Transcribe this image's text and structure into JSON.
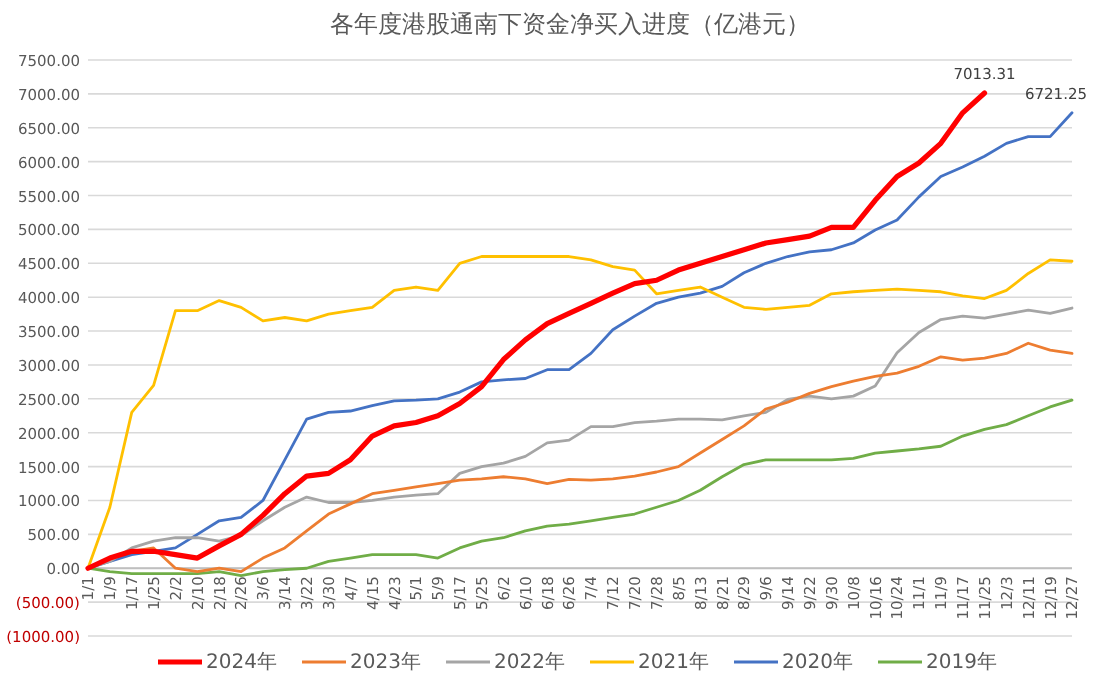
{
  "chart_data": {
    "type": "line",
    "title": "各年度港股通南下资金净买入进度（亿港元）",
    "categories": [
      "1/1",
      "1/9",
      "1/17",
      "1/25",
      "2/2",
      "2/10",
      "2/18",
      "2/26",
      "3/6",
      "3/14",
      "3/22",
      "3/30",
      "4/7",
      "4/15",
      "4/23",
      "5/1",
      "5/9",
      "5/17",
      "5/25",
      "6/2",
      "6/10",
      "6/18",
      "6/26",
      "7/4",
      "7/12",
      "7/20",
      "7/28",
      "8/5",
      "8/13",
      "8/21",
      "8/29",
      "9/6",
      "9/14",
      "9/22",
      "9/30",
      "10/8",
      "10/16",
      "10/24",
      "11/1",
      "11/9",
      "11/17",
      "11/25",
      "12/3",
      "12/11",
      "12/19",
      "12/27"
    ],
    "series": [
      {
        "name": "2024年",
        "color": "#ff0000",
        "values": [
          0,
          150,
          250,
          250,
          200,
          150,
          330,
          500,
          780,
          1100,
          1360,
          1400,
          1600,
          1950,
          2100,
          2150,
          2250,
          2430,
          2680,
          3080,
          3370,
          3610,
          3760,
          3910,
          4060,
          4200,
          4250,
          4400,
          4500,
          4600,
          4700,
          4800,
          4850,
          4900,
          5030,
          5030,
          5430,
          5780,
          5980,
          6270,
          6720,
          7013.31,
          null,
          null,
          null,
          null
        ]
      },
      {
        "name": "2023年",
        "color": "#ed7d31",
        "values": [
          0,
          150,
          250,
          300,
          0,
          -50,
          0,
          -50,
          150,
          300,
          550,
          800,
          950,
          1100,
          1150,
          1200,
          1250,
          1300,
          1320,
          1350,
          1320,
          1250,
          1310,
          1300,
          1320,
          1360,
          1420,
          1500,
          1700,
          1900,
          2100,
          2350,
          2450,
          2580,
          2680,
          2760,
          2830,
          2880,
          2980,
          3120,
          3070,
          3100,
          3170,
          3320,
          3220,
          3170
        ]
      },
      {
        "name": "2022年",
        "color": "#a5a5a5",
        "values": [
          0,
          100,
          300,
          400,
          450,
          450,
          400,
          480,
          700,
          900,
          1050,
          970,
          970,
          1000,
          1050,
          1080,
          1100,
          1400,
          1500,
          1550,
          1650,
          1850,
          1890,
          2090,
          2090,
          2150,
          2170,
          2200,
          2200,
          2190,
          2250,
          2300,
          2490,
          2540,
          2500,
          2540,
          2690,
          3180,
          3480,
          3670,
          3720,
          3690,
          3750,
          3810,
          3760,
          3840
        ]
      },
      {
        "name": "2021年",
        "color": "#ffc000",
        "values": [
          0,
          900,
          2300,
          2700,
          3800,
          3800,
          3950,
          3850,
          3650,
          3700,
          3650,
          3750,
          3800,
          3850,
          4100,
          4150,
          4100,
          4500,
          4600,
          4600,
          4600,
          4600,
          4600,
          4550,
          4450,
          4400,
          4050,
          4100,
          4150,
          4000,
          3850,
          3820,
          3850,
          3880,
          4050,
          4080,
          4100,
          4120,
          4100,
          4080,
          4020,
          3980,
          4100,
          4350,
          4550,
          4530
        ]
      },
      {
        "name": "2020年",
        "color": "#4472c4",
        "values": [
          0,
          100,
          200,
          250,
          300,
          500,
          700,
          750,
          1000,
          1600,
          2200,
          2300,
          2320,
          2400,
          2470,
          2480,
          2500,
          2600,
          2750,
          2780,
          2800,
          2930,
          2930,
          3170,
          3520,
          3720,
          3910,
          4000,
          4060,
          4160,
          4360,
          4500,
          4600,
          4670,
          4700,
          4800,
          4990,
          5140,
          5480,
          5780,
          5920,
          6080,
          6270,
          6370,
          6370,
          6721.25
        ]
      },
      {
        "name": "2019年",
        "color": "#70ad47",
        "values": [
          0,
          -50,
          -80,
          -80,
          -80,
          -80,
          -50,
          -110,
          -50,
          -20,
          0,
          100,
          150,
          200,
          200,
          200,
          150,
          300,
          400,
          450,
          550,
          620,
          650,
          700,
          750,
          800,
          900,
          1000,
          1150,
          1350,
          1530,
          1600,
          1600,
          1600,
          1600,
          1620,
          1700,
          1730,
          1760,
          1800,
          1950,
          2050,
          2120,
          2250,
          2380,
          2480
        ]
      }
    ],
    "ylim": [
      -1000,
      7500
    ],
    "yticks": [
      {
        "value": -1000,
        "label": "(1000.00)"
      },
      {
        "value": -500,
        "label": "(500.00)"
      },
      {
        "value": 0,
        "label": "0.00"
      },
      {
        "value": 500,
        "label": "500.00"
      },
      {
        "value": 1000,
        "label": "1000.00"
      },
      {
        "value": 1500,
        "label": "1500.00"
      },
      {
        "value": 2000,
        "label": "2000.00"
      },
      {
        "value": 2500,
        "label": "2500.00"
      },
      {
        "value": 3000,
        "label": "3000.00"
      },
      {
        "value": 3500,
        "label": "3500.00"
      },
      {
        "value": 4000,
        "label": "4000.00"
      },
      {
        "value": 4500,
        "label": "4500.00"
      },
      {
        "value": 5000,
        "label": "5000.00"
      },
      {
        "value": 5500,
        "label": "5500.00"
      },
      {
        "value": 6000,
        "label": "6000.00"
      },
      {
        "value": 6500,
        "label": "6500.00"
      },
      {
        "value": 7000,
        "label": "7000.00"
      },
      {
        "value": 7500,
        "label": "7500.00"
      }
    ],
    "grid": "y",
    "legend": "bottom",
    "annotations": [
      {
        "text": "7013.31",
        "x": "11/25",
        "y": 7013.31
      },
      {
        "text": "6721.25",
        "x": "12/27",
        "y": 6721.25
      }
    ]
  }
}
